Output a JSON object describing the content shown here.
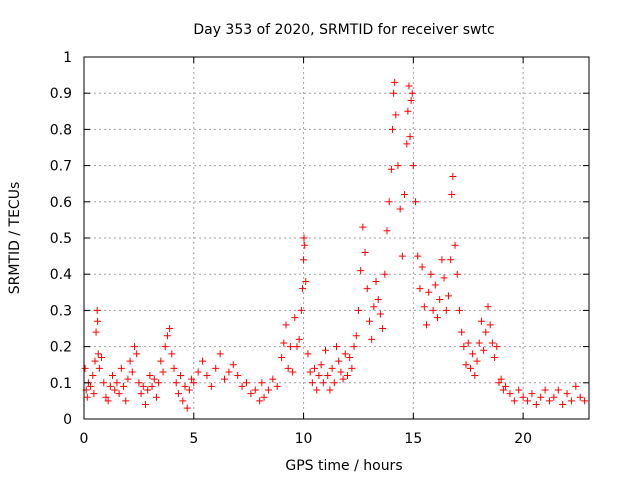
{
  "chart_data": {
    "type": "scatter",
    "title": "Day 353 of 2020, SRMTID for receiver swtc",
    "xlabel": "GPS time / hours",
    "ylabel": "SRMTID / TECUs",
    "xlim": [
      0,
      23
    ],
    "ylim": [
      0,
      1
    ],
    "x_ticks": [
      0,
      5,
      10,
      15,
      20
    ],
    "y_ticks": [
      0,
      0.1,
      0.2,
      0.3,
      0.4,
      0.5,
      0.6,
      0.7,
      0.8,
      0.9,
      1
    ],
    "x_tick_labels": [
      "0",
      "5",
      "10",
      "15",
      "20"
    ],
    "y_tick_labels": [
      "0",
      "0.1",
      "0.2",
      "0.3",
      "0.4",
      "0.5",
      "0.6",
      "0.7",
      "0.8",
      "0.9",
      "1"
    ],
    "grid": true,
    "marker": "+",
    "marker_color": "#ff0000",
    "series": [
      {
        "name": "SRMTID",
        "points": [
          [
            0.05,
            0.14
          ],
          [
            0.1,
            0.08
          ],
          [
            0.15,
            0.06
          ],
          [
            0.2,
            0.1
          ],
          [
            0.3,
            0.09
          ],
          [
            0.4,
            0.12
          ],
          [
            0.45,
            0.07
          ],
          [
            0.5,
            0.16
          ],
          [
            0.55,
            0.24
          ],
          [
            0.6,
            0.3
          ],
          [
            0.62,
            0.27
          ],
          [
            0.65,
            0.18
          ],
          [
            0.7,
            0.14
          ],
          [
            0.8,
            0.17
          ],
          [
            0.9,
            0.1
          ],
          [
            1.0,
            0.06
          ],
          [
            1.1,
            0.05
          ],
          [
            1.2,
            0.09
          ],
          [
            1.3,
            0.12
          ],
          [
            1.4,
            0.08
          ],
          [
            1.5,
            0.1
          ],
          [
            1.6,
            0.07
          ],
          [
            1.7,
            0.14
          ],
          [
            1.8,
            0.09
          ],
          [
            1.9,
            0.05
          ],
          [
            2.0,
            0.11
          ],
          [
            2.1,
            0.16
          ],
          [
            2.2,
            0.13
          ],
          [
            2.3,
            0.2
          ],
          [
            2.4,
            0.18
          ],
          [
            2.5,
            0.1
          ],
          [
            2.6,
            0.07
          ],
          [
            2.7,
            0.09
          ],
          [
            2.8,
            0.04
          ],
          [
            2.9,
            0.08
          ],
          [
            3.0,
            0.12
          ],
          [
            3.1,
            0.09
          ],
          [
            3.2,
            0.11
          ],
          [
            3.3,
            0.06
          ],
          [
            3.4,
            0.1
          ],
          [
            3.5,
            0.16
          ],
          [
            3.6,
            0.13
          ],
          [
            3.7,
            0.2
          ],
          [
            3.8,
            0.23
          ],
          [
            3.9,
            0.25
          ],
          [
            4.0,
            0.18
          ],
          [
            4.1,
            0.14
          ],
          [
            4.2,
            0.1
          ],
          [
            4.3,
            0.07
          ],
          [
            4.4,
            0.12
          ],
          [
            4.5,
            0.05
          ],
          [
            4.6,
            0.09
          ],
          [
            4.7,
            0.03
          ],
          [
            4.8,
            0.08
          ],
          [
            4.9,
            0.11
          ],
          [
            5.0,
            0.1
          ],
          [
            5.2,
            0.13
          ],
          [
            5.4,
            0.16
          ],
          [
            5.6,
            0.12
          ],
          [
            5.8,
            0.09
          ],
          [
            6.0,
            0.14
          ],
          [
            6.2,
            0.18
          ],
          [
            6.4,
            0.11
          ],
          [
            6.6,
            0.13
          ],
          [
            6.8,
            0.15
          ],
          [
            7.0,
            0.12
          ],
          [
            7.2,
            0.09
          ],
          [
            7.4,
            0.1
          ],
          [
            7.6,
            0.07
          ],
          [
            7.8,
            0.08
          ],
          [
            8.0,
            0.05
          ],
          [
            8.1,
            0.1
          ],
          [
            8.2,
            0.06
          ],
          [
            8.4,
            0.08
          ],
          [
            8.6,
            0.11
          ],
          [
            8.8,
            0.09
          ],
          [
            9.0,
            0.17
          ],
          [
            9.1,
            0.21
          ],
          [
            9.2,
            0.26
          ],
          [
            9.3,
            0.14
          ],
          [
            9.4,
            0.2
          ],
          [
            9.5,
            0.13
          ],
          [
            9.6,
            0.28
          ],
          [
            9.7,
            0.2
          ],
          [
            9.8,
            0.22
          ],
          [
            9.9,
            0.3
          ],
          [
            9.95,
            0.36
          ],
          [
            10.0,
            0.44
          ],
          [
            10.02,
            0.5
          ],
          [
            10.05,
            0.48
          ],
          [
            10.1,
            0.38
          ],
          [
            10.2,
            0.18
          ],
          [
            10.3,
            0.13
          ],
          [
            10.4,
            0.1
          ],
          [
            10.5,
            0.14
          ],
          [
            10.6,
            0.08
          ],
          [
            10.7,
            0.12
          ],
          [
            10.8,
            0.15
          ],
          [
            10.9,
            0.1
          ],
          [
            11.0,
            0.19
          ],
          [
            11.1,
            0.12
          ],
          [
            11.2,
            0.08
          ],
          [
            11.3,
            0.14
          ],
          [
            11.4,
            0.1
          ],
          [
            11.5,
            0.2
          ],
          [
            11.6,
            0.16
          ],
          [
            11.7,
            0.13
          ],
          [
            11.8,
            0.11
          ],
          [
            11.9,
            0.18
          ],
          [
            12.0,
            0.12
          ],
          [
            12.1,
            0.17
          ],
          [
            12.2,
            0.14
          ],
          [
            12.3,
            0.2
          ],
          [
            12.4,
            0.23
          ],
          [
            12.5,
            0.3
          ],
          [
            12.6,
            0.41
          ],
          [
            12.7,
            0.53
          ],
          [
            12.8,
            0.46
          ],
          [
            12.9,
            0.36
          ],
          [
            13.0,
            0.27
          ],
          [
            13.1,
            0.22
          ],
          [
            13.2,
            0.31
          ],
          [
            13.3,
            0.38
          ],
          [
            13.4,
            0.33
          ],
          [
            13.5,
            0.29
          ],
          [
            13.6,
            0.25
          ],
          [
            13.7,
            0.4
          ],
          [
            13.8,
            0.52
          ],
          [
            13.9,
            0.6
          ],
          [
            14.0,
            0.69
          ],
          [
            14.05,
            0.8
          ],
          [
            14.1,
            0.9
          ],
          [
            14.15,
            0.93
          ],
          [
            14.2,
            0.84
          ],
          [
            14.3,
            0.7
          ],
          [
            14.4,
            0.58
          ],
          [
            14.5,
            0.45
          ],
          [
            14.6,
            0.62
          ],
          [
            14.7,
            0.76
          ],
          [
            14.75,
            0.85
          ],
          [
            14.8,
            0.92
          ],
          [
            14.85,
            0.78
          ],
          [
            14.9,
            0.88
          ],
          [
            14.95,
            0.9
          ],
          [
            15.0,
            0.7
          ],
          [
            15.1,
            0.6
          ],
          [
            15.2,
            0.45
          ],
          [
            15.3,
            0.36
          ],
          [
            15.4,
            0.42
          ],
          [
            15.5,
            0.31
          ],
          [
            15.6,
            0.26
          ],
          [
            15.7,
            0.35
          ],
          [
            15.8,
            0.4
          ],
          [
            15.9,
            0.3
          ],
          [
            16.0,
            0.37
          ],
          [
            16.1,
            0.28
          ],
          [
            16.2,
            0.33
          ],
          [
            16.3,
            0.44
          ],
          [
            16.4,
            0.39
          ],
          [
            16.5,
            0.3
          ],
          [
            16.6,
            0.34
          ],
          [
            16.7,
            0.44
          ],
          [
            16.75,
            0.62
          ],
          [
            16.8,
            0.67
          ],
          [
            16.9,
            0.48
          ],
          [
            17.0,
            0.4
          ],
          [
            17.1,
            0.3
          ],
          [
            17.2,
            0.24
          ],
          [
            17.3,
            0.2
          ],
          [
            17.4,
            0.15
          ],
          [
            17.5,
            0.21
          ],
          [
            17.6,
            0.14
          ],
          [
            17.7,
            0.18
          ],
          [
            17.8,
            0.12
          ],
          [
            17.9,
            0.16
          ],
          [
            18.0,
            0.21
          ],
          [
            18.1,
            0.27
          ],
          [
            18.2,
            0.19
          ],
          [
            18.3,
            0.24
          ],
          [
            18.4,
            0.31
          ],
          [
            18.5,
            0.26
          ],
          [
            18.6,
            0.21
          ],
          [
            18.7,
            0.17
          ],
          [
            18.8,
            0.2
          ],
          [
            18.9,
            0.1
          ],
          [
            19.0,
            0.11
          ],
          [
            19.1,
            0.08
          ],
          [
            19.2,
            0.09
          ],
          [
            19.4,
            0.07
          ],
          [
            19.6,
            0.05
          ],
          [
            19.8,
            0.08
          ],
          [
            20.0,
            0.06
          ],
          [
            20.2,
            0.05
          ],
          [
            20.4,
            0.07
          ],
          [
            20.6,
            0.04
          ],
          [
            20.8,
            0.06
          ],
          [
            21.0,
            0.08
          ],
          [
            21.2,
            0.05
          ],
          [
            21.4,
            0.06
          ],
          [
            21.6,
            0.08
          ],
          [
            21.8,
            0.04
          ],
          [
            22.0,
            0.07
          ],
          [
            22.2,
            0.05
          ],
          [
            22.4,
            0.09
          ],
          [
            22.6,
            0.06
          ],
          [
            22.8,
            0.05
          ]
        ]
      }
    ]
  }
}
